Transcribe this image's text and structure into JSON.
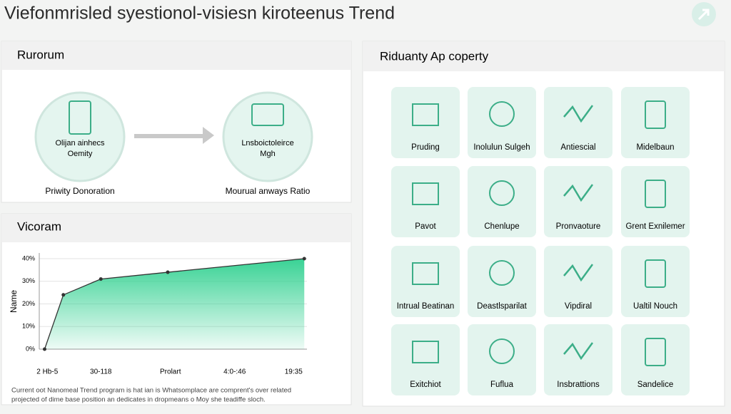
{
  "header": {
    "title": "Viefonmrisled syestionol-visiesn kiroteenus Trend"
  },
  "flow": {
    "title": "Rurorum",
    "nodes": [
      {
        "lines": [
          "Olijan ainhecs",
          "Oemity"
        ],
        "caption": "Priwity Donoration"
      },
      {
        "lines": [
          "Lnsboictoleirce",
          "Mgh"
        ],
        "caption": "Mourual anways Ratio"
      }
    ]
  },
  "trend": {
    "title": "Vicoram",
    "note": [
      "Current oot Nanomeal Trend program is hat ian is Whatsomplace are comprent's over related",
      "projected of dime base position an dedicates in dropmeans o Moy she teadiffe sloch."
    ],
    "chart_data": {
      "type": "line",
      "ylabel": "Name",
      "color": "#2ecc8a",
      "x": [
        2,
        9,
        23,
        48,
        99
      ],
      "values": [
        0,
        24,
        31,
        34,
        40
      ],
      "xlim": [
        0,
        100
      ],
      "ylim": [
        0,
        40
      ],
      "xticks": [
        {
          "value": 3,
          "label": "2 Hb-5"
        },
        {
          "value": 23,
          "label": "30-118"
        },
        {
          "value": 49,
          "label": "Prolart"
        },
        {
          "value": 73,
          "label": "4:0-:46"
        },
        {
          "value": 95,
          "label": "19:35"
        }
      ],
      "yticks": [
        {
          "value": 0,
          "label": "0%"
        },
        {
          "value": 10,
          "label": "10%"
        },
        {
          "value": 20,
          "label": "20%"
        },
        {
          "value": 30,
          "label": "30%"
        },
        {
          "value": 40,
          "label": "40%"
        }
      ]
    }
  },
  "apps": {
    "title": "Riduanty Ap coperty",
    "items": [
      "Pruding",
      "Inolulun Sulgeh",
      "Antiescial",
      "Midelbaun",
      "Pavot",
      "Chenlupe",
      "Pronvaoture",
      "Grent Exnilemer",
      "Intrual Beatinan",
      "Deastlsparilat",
      "Vipdiral",
      "Ualtil Nouch",
      "Exitchiot",
      "Fuflua",
      "Insbrattions",
      "Sandelice"
    ]
  }
}
